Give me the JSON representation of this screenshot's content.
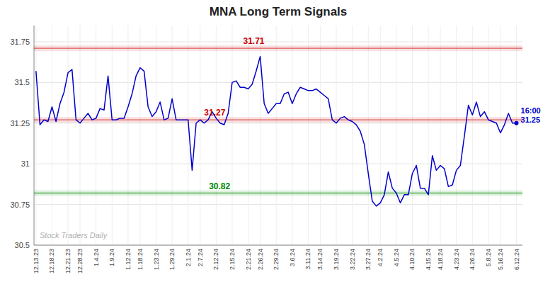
{
  "chart_data": {
    "type": "line",
    "title": "MNA Long Term Signals",
    "watermark": "Stock Traders Daily",
    "categories": [
      "12.13.23",
      null,
      null,
      null,
      "12.18.23",
      null,
      null,
      null,
      "12.21.23",
      null,
      null,
      "12.28.23",
      null,
      null,
      null,
      "1.4.24",
      null,
      null,
      null,
      "1.9.24",
      null,
      null,
      null,
      "1.12.24",
      null,
      null,
      "1.18.24",
      null,
      null,
      null,
      "1.23.24",
      null,
      null,
      null,
      "1.29.24",
      null,
      null,
      null,
      "2.1.24",
      null,
      null,
      "2.7.24",
      null,
      null,
      null,
      "2.12.24",
      null,
      null,
      null,
      "2.15.24",
      null,
      null,
      null,
      "2.21.24",
      null,
      null,
      "2.26.24",
      null,
      null,
      null,
      "2.29.24",
      null,
      null,
      null,
      "3.6.24",
      null,
      null,
      null,
      "3.11.24",
      null,
      null,
      "3.14.24",
      null,
      null,
      null,
      "3.19.24",
      null,
      null,
      null,
      "3.22.24",
      null,
      null,
      null,
      "3.27.24",
      null,
      null,
      "4.2.24",
      null,
      null,
      null,
      "4.5.24",
      null,
      null,
      null,
      "4.10.24",
      null,
      null,
      null,
      "4.15.24",
      null,
      null,
      "4.18.24",
      null,
      null,
      null,
      "4.23.24",
      null,
      null,
      null,
      "4.26.24",
      null,
      null,
      null,
      "5.8.24",
      null,
      null,
      "5.16.24",
      null,
      null,
      null,
      "6.12.24"
    ],
    "series": [
      {
        "color": "#0000CC",
        "marker": "last-point",
        "values": [
          31.57,
          31.24,
          31.27,
          31.26,
          31.35,
          31.26,
          31.37,
          31.44,
          31.56,
          31.58,
          31.27,
          31.25,
          31.28,
          31.31,
          31.27,
          31.28,
          31.34,
          31.33,
          31.54,
          31.27,
          31.27,
          31.28,
          31.28,
          31.35,
          31.43,
          31.54,
          31.59,
          31.57,
          31.35,
          31.29,
          31.32,
          31.38,
          31.27,
          31.28,
          31.4,
          31.27,
          31.27,
          31.27,
          31.27,
          30.96,
          31.25,
          31.27,
          31.25,
          31.27,
          31.32,
          31.28,
          31.25,
          31.24,
          31.31,
          31.5,
          31.51,
          31.47,
          31.47,
          31.46,
          31.49,
          31.57,
          31.66,
          31.37,
          31.31,
          31.34,
          31.37,
          31.37,
          31.43,
          31.44,
          31.37,
          31.43,
          31.47,
          31.46,
          31.45,
          31.45,
          31.46,
          31.44,
          31.42,
          31.4,
          31.27,
          31.25,
          31.28,
          31.29,
          31.27,
          31.26,
          31.24,
          31.2,
          31.12,
          30.94,
          30.77,
          30.74,
          30.76,
          30.81,
          30.95,
          30.85,
          30.82,
          30.76,
          30.81,
          30.81,
          30.94,
          30.99,
          30.85,
          30.85,
          30.81,
          31.05,
          30.96,
          30.99,
          30.97,
          30.86,
          30.87,
          30.96,
          30.99,
          31.17,
          31.36,
          31.3,
          31.38,
          31.29,
          31.32,
          31.27,
          31.26,
          31.25,
          31.19,
          31.24,
          31.31,
          31.25,
          31.25
        ]
      }
    ],
    "reference_lines": [
      {
        "value": 31.71,
        "label": "31.71",
        "color": "#cc0000"
      },
      {
        "value": 31.27,
        "label": "31.27",
        "color": "#cc0000"
      },
      {
        "value": 30.82,
        "label": "30.82",
        "color": "#008800"
      }
    ],
    "end_label": {
      "time": "16:00",
      "value": 31.25
    },
    "ylim": [
      30.5,
      31.85
    ],
    "yticks": [
      30.5,
      30.75,
      31,
      31.25,
      31.5,
      31.75
    ],
    "grid": true
  }
}
